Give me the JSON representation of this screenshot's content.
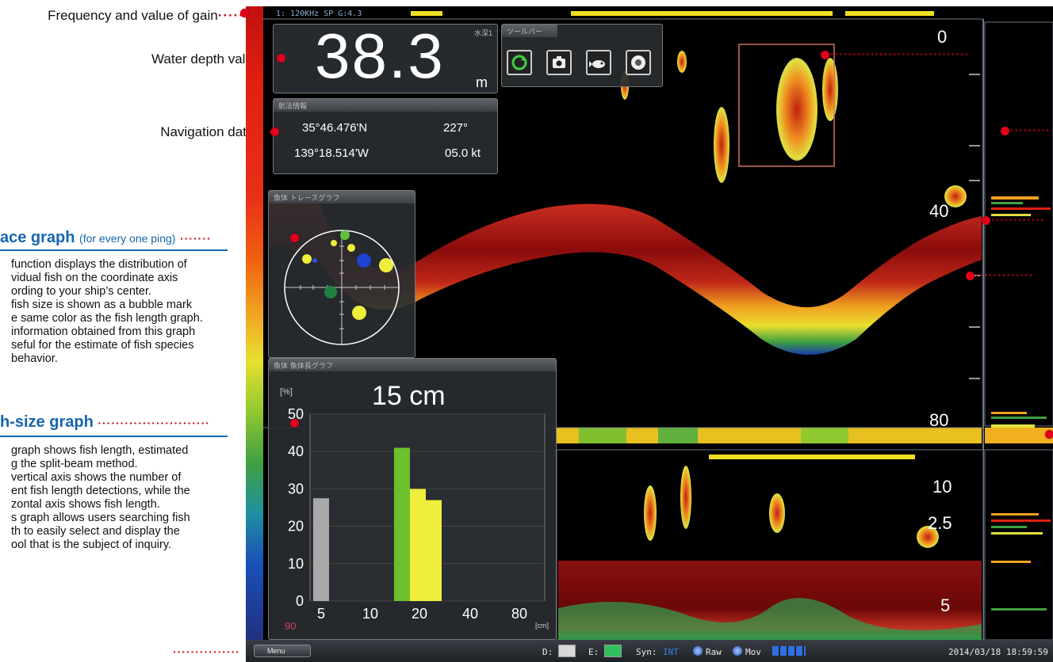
{
  "annotations": {
    "freq_gain": "Frequency and value of gain",
    "water_depth": "Water depth value",
    "navigation": "Navigation data",
    "trace_title": "ace graph",
    "trace_sub": "(for every one ping)",
    "trace_desc": [
      "function displays the distribution of",
      "vidual fish on the coordinate axis",
      "ording to your ship’s center.",
      "fish size is shown as a bubble mark",
      "e same color as the fish length graph.",
      "information obtained from this graph",
      "seful for the estimate of fish species",
      "behavior."
    ],
    "fishsize_title": "h-size graph",
    "fishsize_desc": [
      "graph shows fish length, estimated",
      "g the split-beam method.",
      "vertical axis shows the number of",
      "ent fish length detections, while the",
      "zontal axis shows fish length.",
      "s graph allows users searching fish",
      "th to easily select and display the",
      "ool that is the subject of inquiry."
    ]
  },
  "screen": {
    "header_text": "1:  120KHz SP   G:4.3",
    "depth_value": "38.3",
    "depth_unit": "m",
    "depth_tag": "水深1",
    "nav_panel_title": "航法情報",
    "nav": {
      "lat": "35°46.476'N",
      "lon": "139°18.514'W",
      "heading": "227°",
      "speed": "05.0 kt"
    },
    "toolbar_title": "ツールバー",
    "tools": [
      "refresh-icon",
      "camera-icon",
      "fish-icon",
      "record-icon"
    ],
    "trace_panel_title": "魚体 トレースグラフ",
    "fishsize_panel_title": "魚体 魚体長グラフ",
    "fish_length_readout": "15 cm",
    "depth_scale_main": [
      "0",
      "40",
      "80"
    ],
    "depth_scale_lower": [
      "10",
      "2.5",
      "5"
    ],
    "status": {
      "menu": "Menu",
      "d_label": "D:",
      "e_label": "E:",
      "sync_label": "Syn:",
      "sync_value": "INT",
      "raw": "Raw",
      "mov": "Mov",
      "datetime": "2014/03/18  18:59:59"
    }
  },
  "chart_data": {
    "type": "bar",
    "title": "15 cm",
    "ylabel": "[%]",
    "xlabel": "[cm]",
    "ylim": [
      0,
      50
    ],
    "y_ticks": [
      "0",
      "10",
      "20",
      "30",
      "40",
      "50"
    ],
    "x_ticks": [
      "5",
      "10",
      "20",
      "40",
      "80"
    ],
    "peak_label": "15",
    "corner_value": "90",
    "bars": [
      {
        "bin": "5",
        "value": 27.5,
        "color": "#a8a8a8"
      },
      {
        "bin": "15",
        "value": 41,
        "color": "#6cc02c"
      },
      {
        "bin": "17",
        "value": 30,
        "color": "#f0ee3c"
      },
      {
        "bin": "20",
        "value": 27,
        "color": "#f0ee3c"
      }
    ]
  },
  "colors": {
    "accent_blue": "#1566b0",
    "marker_red": "#e0001b"
  }
}
